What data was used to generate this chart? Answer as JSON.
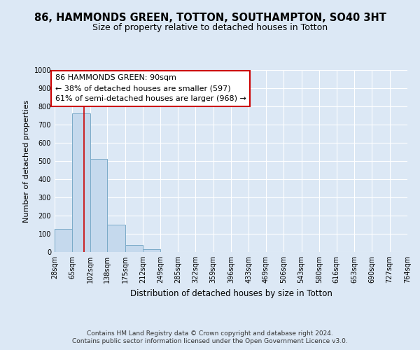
{
  "title": "86, HAMMONDS GREEN, TOTTON, SOUTHAMPTON, SO40 3HT",
  "subtitle": "Size of property relative to detached houses in Totton",
  "xlabel": "Distribution of detached houses by size in Totton",
  "ylabel": "Number of detached properties",
  "bin_edges": [
    28,
    65,
    102,
    138,
    175,
    212,
    249,
    285,
    322,
    359,
    396,
    433,
    469,
    506,
    543,
    580,
    616,
    653,
    690,
    727,
    764
  ],
  "bin_counts": [
    127,
    760,
    510,
    150,
    40,
    15,
    0,
    0,
    0,
    0,
    0,
    0,
    0,
    0,
    0,
    0,
    0,
    0,
    0,
    0
  ],
  "bar_color": "#c5d9ed",
  "bar_edge_color": "#7aaac8",
  "vline_x": 90,
  "vline_color": "#cc0000",
  "annotation_line1": "86 HAMMONDS GREEN: 90sqm",
  "annotation_line2": "← 38% of detached houses are smaller (597)",
  "annotation_line3": "61% of semi-detached houses are larger (968) →",
  "ylim": [
    0,
    1000
  ],
  "yticks": [
    0,
    100,
    200,
    300,
    400,
    500,
    600,
    700,
    800,
    900,
    1000
  ],
  "bg_color": "#dce8f5",
  "plot_bg_color": "#dce8f5",
  "footer_line1": "Contains HM Land Registry data © Crown copyright and database right 2024.",
  "footer_line2": "Contains public sector information licensed under the Open Government Licence v3.0.",
  "title_fontsize": 10.5,
  "subtitle_fontsize": 9,
  "xlabel_fontsize": 8.5,
  "ylabel_fontsize": 8,
  "tick_fontsize": 7,
  "annotation_fontsize": 8,
  "footer_fontsize": 6.5
}
